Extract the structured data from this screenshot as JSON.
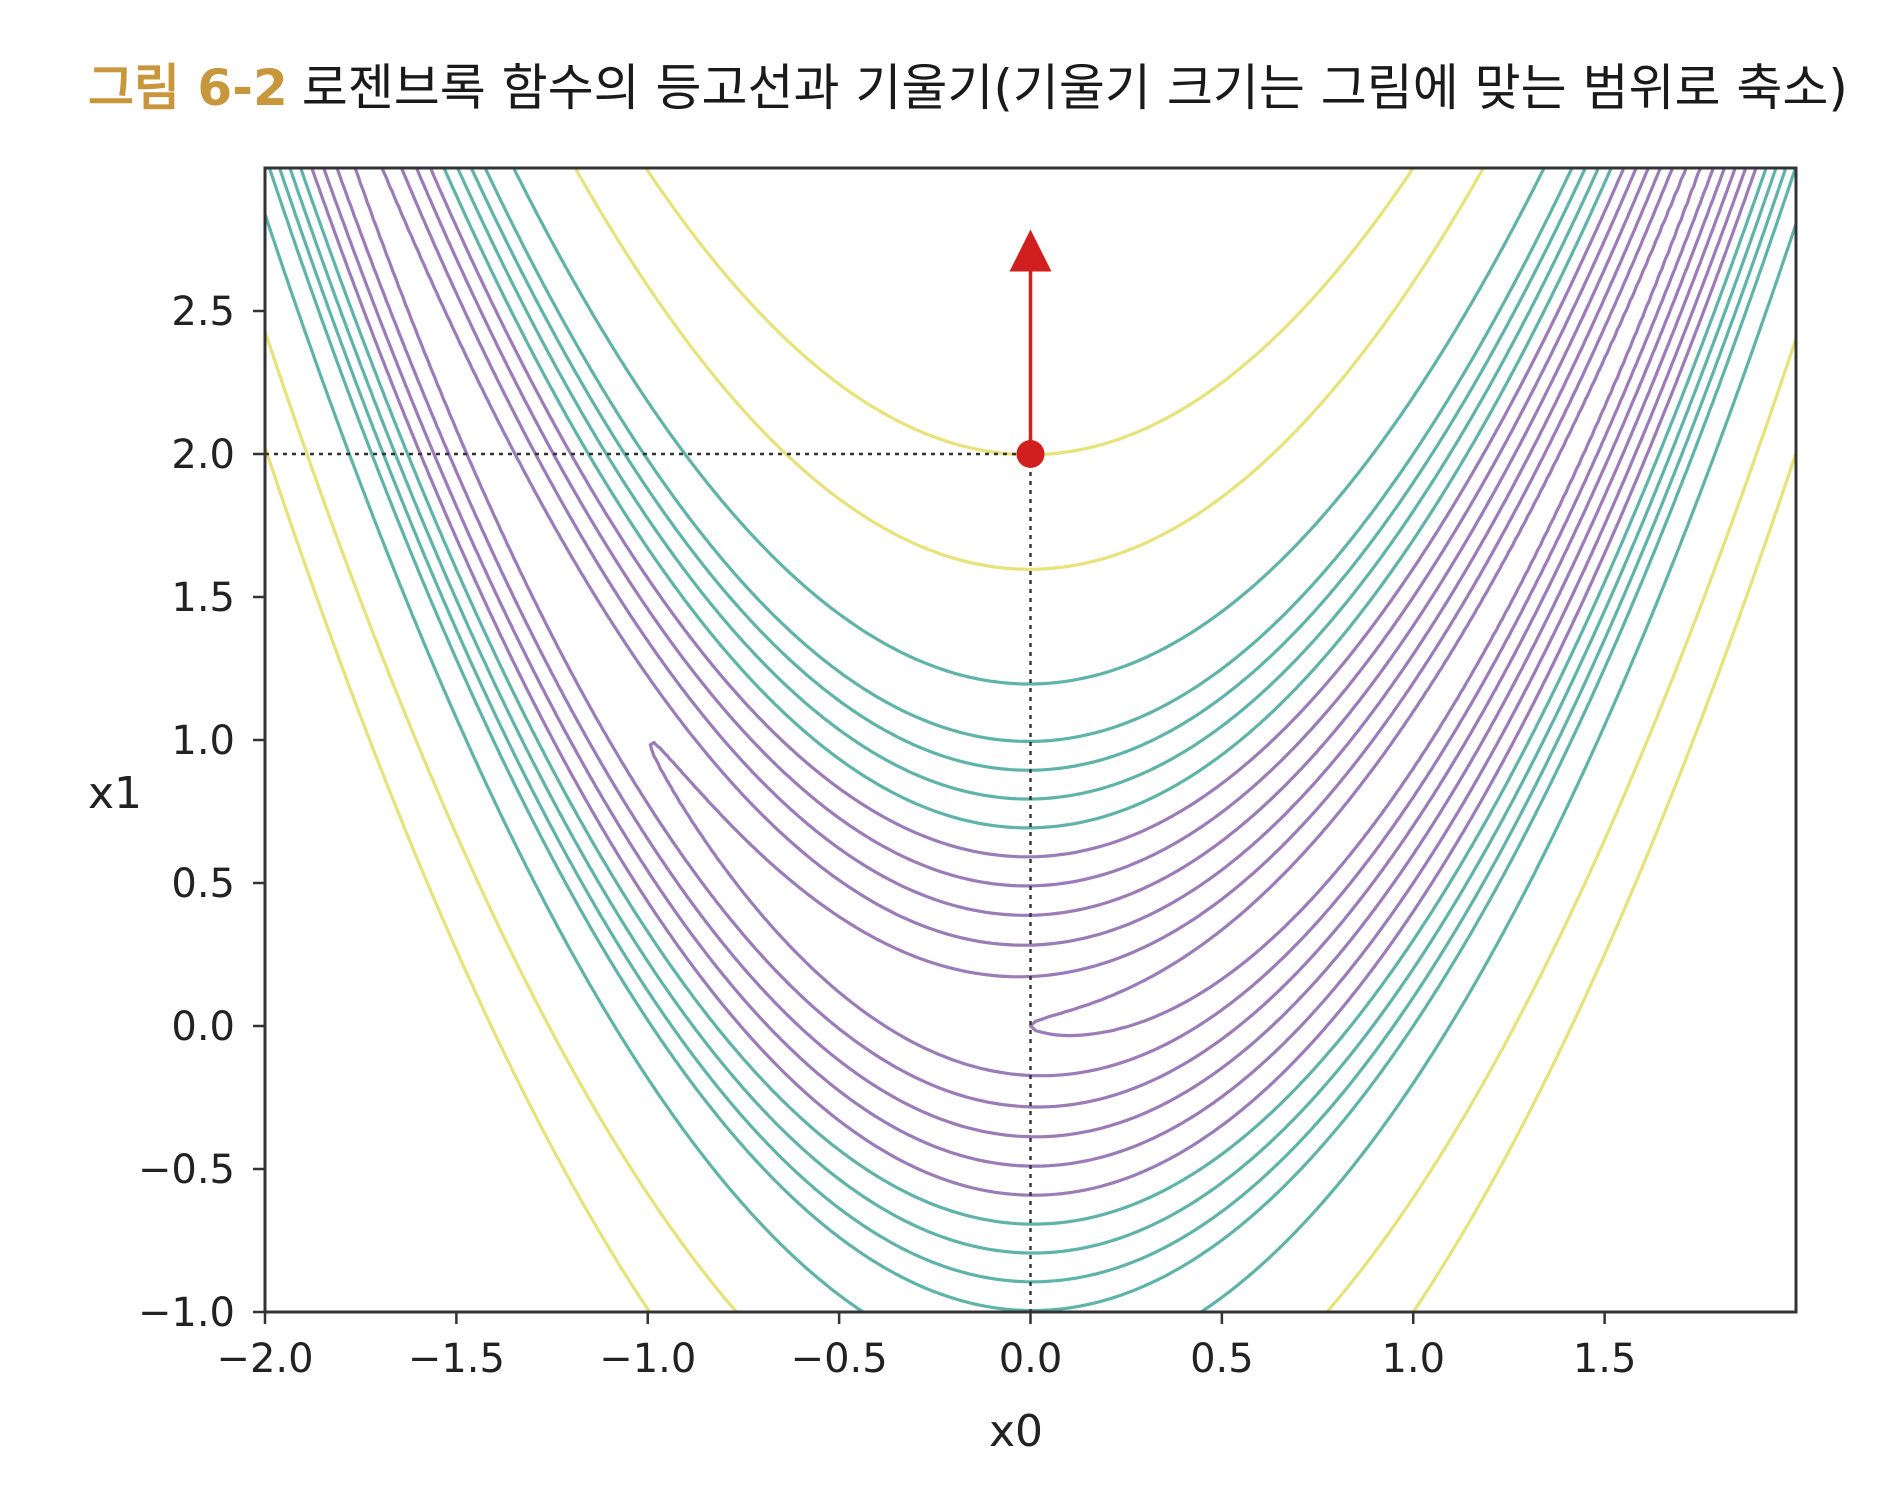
{
  "caption": {
    "label": "그림 6-2",
    "text": "로젠브록 함수의 등고선과 기울기(기울기 크기는 그림에 맞는 범위로 축소)"
  },
  "chart_data": {
    "type": "contour",
    "function": "rosenbrock: f(x0, x1) = 100*(x1 - x0^2)^2 + (1 - x0)^2",
    "xlabel": "x0",
    "ylabel": "x1",
    "xlim": [
      -2.0,
      2.0
    ],
    "ylim": [
      -1.0,
      3.0
    ],
    "xticks": [
      -2.0,
      -1.5,
      -1.0,
      -0.5,
      0.0,
      0.5,
      1.0,
      1.5
    ],
    "yticks": [
      -1.0,
      -0.5,
      0.0,
      0.5,
      1.0,
      1.5,
      2.0,
      2.5
    ],
    "xtick_labels": [
      "−2.0",
      "−1.5",
      "−1.0",
      "−0.5",
      "0.0",
      "0.5",
      "1.0",
      "1.5"
    ],
    "ytick_labels": [
      "−1.0",
      "−0.5",
      "0.0",
      "0.5",
      "1.0",
      "1.5",
      "2.0",
      "2.5"
    ],
    "contour_levels": [
      1,
      4,
      9,
      16,
      25,
      36,
      49,
      64,
      81,
      100,
      144,
      256,
      400
    ],
    "contour_colors": {
      "low": "#9b7bb8",
      "mid": "#5fb3a8",
      "high": "#e8e27a"
    },
    "point": {
      "x0": 0.0,
      "x1": 2.0,
      "color": "#d11f1f"
    },
    "gradient_arrow": {
      "from": [
        0.0,
        2.0
      ],
      "to": [
        0.0,
        2.75
      ],
      "color": "#d11f1f"
    },
    "guide_lines": {
      "style": "dotted",
      "color": "#333333"
    },
    "grid": false
  }
}
